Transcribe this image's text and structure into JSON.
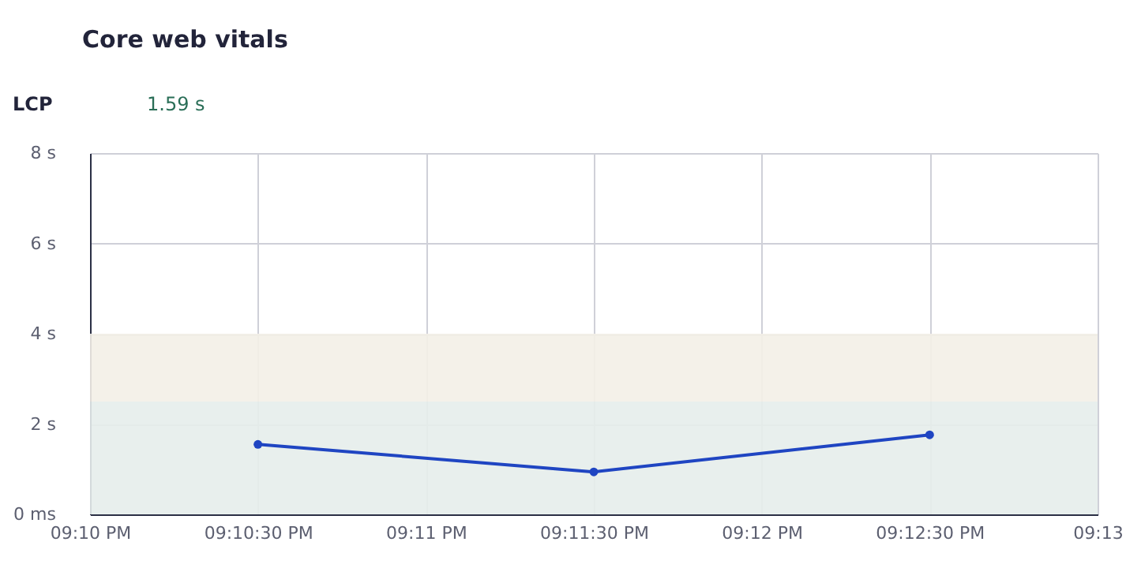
{
  "chart_data": {
    "type": "line",
    "title": "Core web vitals",
    "subtitle": "LCP",
    "annotations": [
      "1.59 s"
    ],
    "categories": [
      "09:10 PM",
      "09:10:30 PM",
      "09:11 PM",
      "09:11:30 PM",
      "09:12 PM",
      "09:12:30 PM",
      "09:13"
    ],
    "series": [
      {
        "color": "#1f45c2",
        "x": [
          "09:10:30 PM",
          "09:11:30 PM",
          "09:12:30 PM"
        ],
        "values": [
          1.55,
          0.94,
          1.76
        ]
      }
    ],
    "ylim": [
      0,
      8
    ],
    "yticks": [
      {
        "value": 0,
        "label": "0 ms"
      },
      {
        "value": 2,
        "label": "2 s"
      },
      {
        "value": 4,
        "label": "4 s"
      },
      {
        "value": 6,
        "label": "6 s"
      },
      {
        "value": 8,
        "label": "8 s"
      }
    ],
    "bands": [
      {
        "axis": "y",
        "from": 0,
        "to": 2.5,
        "color": "#e6edeb"
      },
      {
        "axis": "y",
        "from": 2.5,
        "to": 4,
        "color": "#f3efe7"
      }
    ],
    "grid": true,
    "marker": "circle",
    "line_style": "solid"
  }
}
